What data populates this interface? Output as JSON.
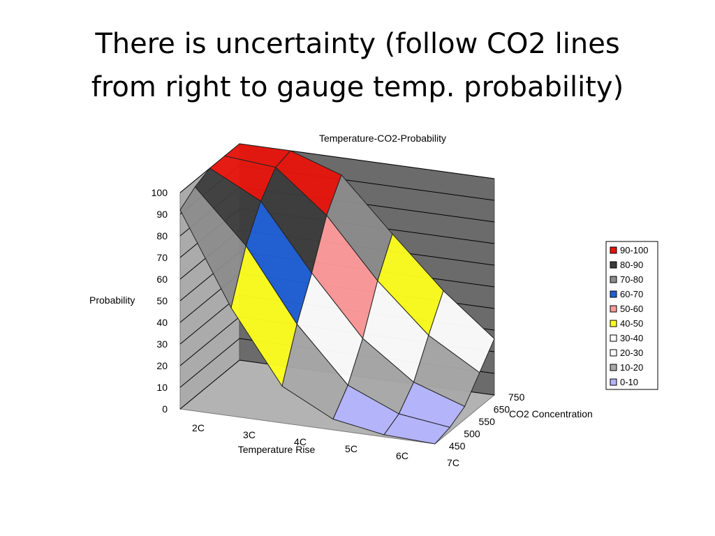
{
  "slide": {
    "title_lines": [
      "There is uncertainty (follow CO2 lines",
      "from right to gauge temp. probability)"
    ]
  },
  "chart_data": {
    "type": "surface",
    "title": "Temperature-CO2-Probability",
    "xlabel": "Temperature Rise",
    "ylabel": "CO2 Concentration",
    "zlabel": "Probability",
    "x_categories": [
      "2C",
      "3C",
      "4C",
      "5C",
      "6C",
      "7C"
    ],
    "y_categories": [
      "450",
      "500",
      "550",
      "650",
      "750"
    ],
    "z_ticks": [
      0,
      10,
      20,
      30,
      40,
      50,
      60,
      70,
      80,
      90,
      100
    ],
    "zlim": [
      0,
      100
    ],
    "values": [
      [
        92,
        50,
        17,
        5,
        1,
        0
      ],
      [
        97,
        73,
        40,
        15,
        5,
        2
      ],
      [
        100,
        88,
        58,
        31,
        14,
        6
      ],
      [
        100,
        98,
        79,
        52,
        30,
        16
      ],
      [
        100,
        100,
        92,
        68,
        45,
        26
      ]
    ],
    "legend": {
      "position": "right",
      "entries": [
        {
          "label": "90-100",
          "color": "#e8140c"
        },
        {
          "label": "80-90",
          "color": "#3c3c3c"
        },
        {
          "label": "70-80",
          "color": "#8c8c8c"
        },
        {
          "label": "60-70",
          "color": "#1f5fd6"
        },
        {
          "label": "50-60",
          "color": "#ff9a9a"
        },
        {
          "label": "40-50",
          "color": "#ffff1e"
        },
        {
          "label": "30-40",
          "color": "#ffffff"
        },
        {
          "label": "20-30",
          "color": "#ffffff"
        },
        {
          "label": "10-20",
          "color": "#a9a9a9"
        },
        {
          "label": "0-10",
          "color": "#b4b4ff"
        }
      ]
    }
  }
}
